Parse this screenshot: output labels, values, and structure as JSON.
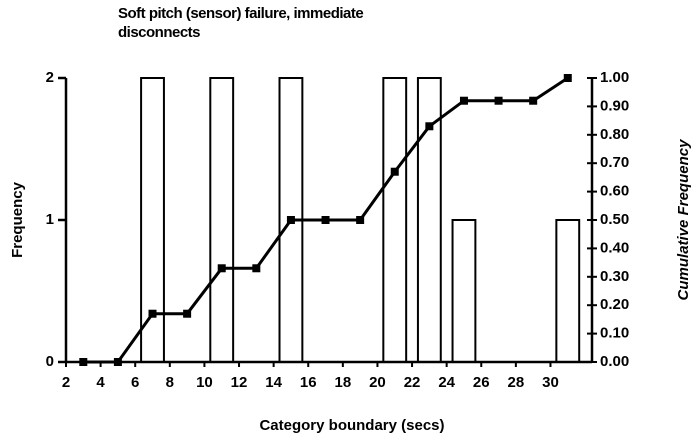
{
  "chart_data": {
    "type": "bar",
    "title": "Soft pitch (sensor) failure, immediate disconnects",
    "xlabel": "Category boundary (secs)",
    "ylabel": "Frequency",
    "y2label": "Cumulative Frequency",
    "x": [
      3,
      5,
      7,
      9,
      11,
      13,
      15,
      17,
      19,
      21,
      23,
      25,
      27,
      29,
      31
    ],
    "series": [
      {
        "name": "Frequency",
        "type": "bar",
        "color": "#ffffff",
        "values": [
          0,
          0,
          2,
          0,
          2,
          0,
          2,
          0,
          0,
          2,
          2,
          1,
          0,
          0,
          1
        ]
      },
      {
        "name": "Cumulative Frequency",
        "type": "line",
        "axis": "y2",
        "color": "#000000",
        "values": [
          0,
          0,
          0.17,
          0.17,
          0.33,
          0.33,
          0.5,
          0.5,
          0.5,
          0.67,
          0.83,
          0.92,
          0.92,
          0.92,
          1.0
        ]
      }
    ],
    "xlim": [
      2,
      32.4
    ],
    "xticks": [
      2,
      4,
      6,
      8,
      10,
      12,
      14,
      16,
      18,
      20,
      22,
      24,
      26,
      28,
      30
    ],
    "ylim": [
      0,
      2
    ],
    "yticks": [
      0,
      1,
      2
    ],
    "y2lim": [
      0,
      1
    ],
    "y2ticks": [
      {
        "value": 0,
        "label": "0.00"
      },
      {
        "value": 0.1,
        "label": "0.10"
      },
      {
        "value": 0.2,
        "label": "0.20"
      },
      {
        "value": 0.3,
        "label": "0.30"
      },
      {
        "value": 0.4,
        "label": "0.40"
      },
      {
        "value": 0.5,
        "label": "0.50"
      },
      {
        "value": 0.6,
        "label": "0.60"
      },
      {
        "value": 0.7,
        "label": "0.70"
      },
      {
        "value": 0.8,
        "label": "0.80"
      },
      {
        "value": 0.9,
        "label": "0.90"
      },
      {
        "value": 1,
        "label": "1.00"
      }
    ],
    "grid": false
  }
}
